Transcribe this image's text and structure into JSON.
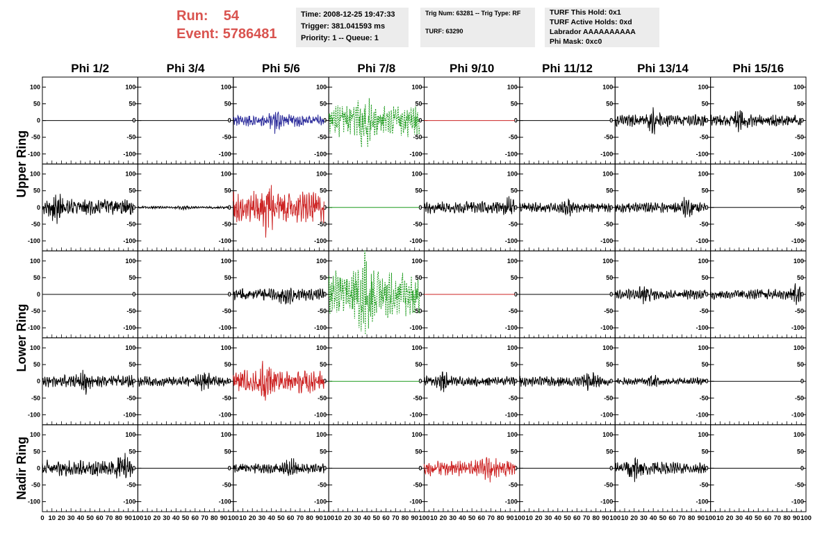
{
  "header": {
    "run_label": "Run:",
    "run_value": "54",
    "event_label": "Event:",
    "event_value": "5786481",
    "time": "Time: 2008-12-25 19:47:33",
    "trigger": "Trigger: 381.041593 ms",
    "priority": "Priority: 1 -- Queue: 1",
    "trig_num": "Trig Num: 63281 -- Trig Type: RF",
    "turf": "TURF: 63290",
    "turf_this_hold": "TURF This Hold: 0x1",
    "turf_active_holds": "TURF Active Holds: 0xd",
    "labrador": "Labrador AAAAAAAAAA",
    "phi_mask": "Phi Mask: 0xc0"
  },
  "chart_data": {
    "type": "line",
    "columns": [
      "Phi 1/2",
      "Phi 3/4",
      "Phi 5/6",
      "Phi 7/8",
      "Phi 9/10",
      "Phi 11/12",
      "Phi 13/14",
      "Phi 15/16"
    ],
    "rings": [
      "Upper Ring",
      "Lower Ring",
      "Nadir Ring"
    ],
    "xlim": [
      0,
      100
    ],
    "ylim": [
      -130,
      130
    ],
    "yticks": [
      -100,
      -50,
      0,
      50,
      100
    ],
    "xticks": [
      0,
      10,
      20,
      30,
      40,
      50,
      60,
      70,
      80,
      90,
      100
    ],
    "rows": [
      [
        {
          "color": "#000000",
          "amp": 0,
          "noise": 0,
          "flat": true
        },
        {
          "color": "#000000",
          "amp": 0,
          "noise": 0,
          "flat": true
        },
        {
          "color": "#2a2a9a",
          "amp": 30,
          "noise": 0.55,
          "peak": 45
        },
        {
          "color": "#1a9a1a",
          "amp": 75,
          "noise": 0.35,
          "peak": 37,
          "dashed": true
        },
        {
          "color": "#cc2222",
          "amp": 0,
          "noise": 0,
          "flat": true
        },
        {
          "color": "#000000",
          "amp": 0,
          "noise": 0,
          "flat": true
        },
        {
          "color": "#000000",
          "amp": 30,
          "noise": 0.5,
          "peak": 40
        },
        {
          "color": "#000000",
          "amp": 30,
          "noise": 0.55,
          "peak": 30
        }
      ],
      [
        {
          "color": "#000000",
          "amp": 40,
          "noise": 0.5,
          "peak": 15
        },
        {
          "color": "#000000",
          "amp": 6,
          "noise": 0.8,
          "peak": 50
        },
        {
          "color": "#cc2222",
          "amp": 75,
          "noise": 0.35,
          "peak": 36
        },
        {
          "color": "#1a9a1a",
          "amp": 0,
          "noise": 0,
          "flat": true
        },
        {
          "color": "#000000",
          "amp": 30,
          "noise": 0.55,
          "peak": 90
        },
        {
          "color": "#000000",
          "amp": 25,
          "noise": 0.55,
          "peak": 50
        },
        {
          "color": "#000000",
          "amp": 25,
          "noise": 0.55,
          "peak": 75
        },
        {
          "color": "#000000",
          "amp": 0,
          "noise": 0,
          "flat": true
        }
      ],
      [
        {
          "color": "#000000",
          "amp": 0,
          "noise": 0,
          "flat": true
        },
        {
          "color": "#000000",
          "amp": 0,
          "noise": 0,
          "flat": true
        },
        {
          "color": "#000000",
          "amp": 30,
          "noise": 0.55,
          "peak": 55
        },
        {
          "color": "#1a9a1a",
          "amp": 110,
          "noise": 0.35,
          "peak": 38,
          "dashed": true
        },
        {
          "color": "#cc2222",
          "amp": 0,
          "noise": 0,
          "flat": true
        },
        {
          "color": "#000000",
          "amp": 0,
          "noise": 0,
          "flat": true
        },
        {
          "color": "#000000",
          "amp": 25,
          "noise": 0.55,
          "peak": 30
        },
        {
          "color": "#000000",
          "amp": 25,
          "noise": 0.55,
          "peak": 90
        }
      ],
      [
        {
          "color": "#000000",
          "amp": 30,
          "noise": 0.55,
          "peak": 45
        },
        {
          "color": "#000000",
          "amp": 25,
          "noise": 0.55,
          "peak": 70
        },
        {
          "color": "#cc2222",
          "amp": 55,
          "noise": 0.35,
          "peak": 35
        },
        {
          "color": "#1a9a1a",
          "amp": 0,
          "noise": 0,
          "flat": true
        },
        {
          "color": "#000000",
          "amp": 25,
          "noise": 0.55,
          "peak": 20
        },
        {
          "color": "#000000",
          "amp": 25,
          "noise": 0.55,
          "peak": 75
        },
        {
          "color": "#000000",
          "amp": 18,
          "noise": 0.6,
          "peak": 40
        },
        {
          "color": "#000000",
          "amp": 0,
          "noise": 0,
          "flat": true
        }
      ],
      [
        {
          "color": "#000000",
          "amp": 40,
          "noise": 0.5,
          "peak": 83
        },
        {
          "color": "#000000",
          "amp": 0,
          "noise": 0,
          "flat": true
        },
        {
          "color": "#000000",
          "amp": 25,
          "noise": 0.55,
          "peak": 60
        },
        {
          "color": "#000000",
          "amp": 0,
          "noise": 0,
          "flat": true
        },
        {
          "color": "#cc2222",
          "amp": 40,
          "noise": 0.45,
          "peak": 68
        },
        {
          "color": "#000000",
          "amp": 0,
          "noise": 0,
          "flat": true
        },
        {
          "color": "#000000",
          "amp": 30,
          "noise": 0.5,
          "peak": 20
        },
        {
          "color": "#000000",
          "amp": 0,
          "noise": 0,
          "flat": true
        }
      ]
    ]
  }
}
